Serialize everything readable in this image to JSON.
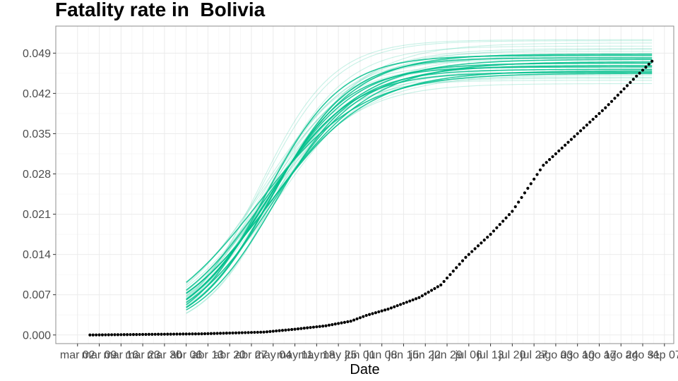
{
  "chart_data": {
    "type": "line",
    "title": "Fatality rate in  Bolivia",
    "xlabel": "Date",
    "ylabel": "",
    "ylim": [
      -0.0015,
      0.0537
    ],
    "xlim": [
      -7,
      192
    ],
    "y_ticks": [
      0.0,
      0.007,
      0.014,
      0.021,
      0.028,
      0.035,
      0.042,
      0.049
    ],
    "y_tick_labels": [
      "0.000",
      "0.007",
      "0.014",
      "0.021",
      "0.028",
      "0.035",
      "0.042",
      "0.049"
    ],
    "x_ticks": [
      0,
      7,
      14,
      21,
      28,
      35,
      42,
      49,
      56,
      63,
      70,
      77,
      84,
      91,
      98,
      105,
      112,
      119,
      126,
      133,
      140,
      147,
      154,
      161,
      168,
      175,
      182,
      189
    ],
    "x_tick_labels": [
      "mar 02",
      "mar 09",
      "mar 16",
      "mar 23",
      "mar 30",
      "abr 06",
      "abr 13",
      "abr 20",
      "abr 27",
      "may 04",
      "may 11",
      "may 18",
      "may 25",
      "jun 01",
      "jun 08",
      "jun 15",
      "jun 22",
      "jun 29",
      "jul 06",
      "jul 13",
      "jul 20",
      "jul 27",
      "ago 03",
      "ago 10",
      "ago 17",
      "ago 24",
      "ago 31",
      "sep 07"
    ],
    "grid": true,
    "legend": "none",
    "colors": {
      "fit_lines": "#00BF8C",
      "observed_points": "#000000",
      "panel_border": "#8c8c8c",
      "grid": "#ebebeb"
    },
    "observed_series": {
      "name": "",
      "style": "points",
      "day_start": 4,
      "day_end": 185,
      "anchor_days": [
        4,
        40,
        60,
        70,
        80,
        88,
        93,
        100,
        110,
        117,
        125,
        133,
        140,
        150,
        160,
        170,
        180,
        185
      ],
      "anchor_values": [
        0.0,
        0.0002,
        0.0005,
        0.001,
        0.0016,
        0.0024,
        0.0034,
        0.0045,
        0.0065,
        0.0087,
        0.0135,
        0.0175,
        0.0215,
        0.0295,
        0.0345,
        0.0395,
        0.045,
        0.0476
      ]
    },
    "fit_series": {
      "name": "",
      "style": "lines",
      "day_start": 35,
      "day_end": 185,
      "count": 34,
      "midpoint_day_range": [
        58,
        64
      ],
      "growth_rate_range": [
        0.06,
        0.088
      ],
      "asymptote_range": [
        0.0435,
        0.0515
      ],
      "emphasized_lines": 12
    }
  }
}
